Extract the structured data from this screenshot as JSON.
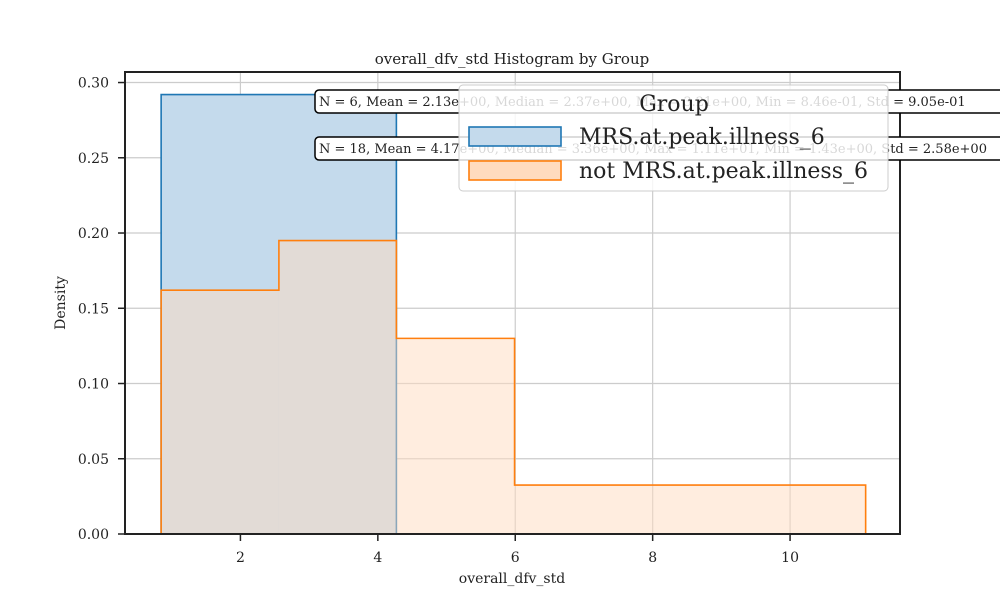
{
  "chart_data": {
    "type": "histogram",
    "title": "overall_dfv_std Histogram by Group",
    "xlabel": "overall_dfv_std",
    "ylabel": "Density",
    "xlim": [
      0.32,
      11.6
    ],
    "ylim": [
      0,
      0.307
    ],
    "x_ticks": [
      2,
      4,
      6,
      8,
      10
    ],
    "y_ticks": [
      0.0,
      0.05,
      0.1,
      0.15,
      0.2,
      0.25,
      0.3
    ],
    "x_tick_labels": [
      "2",
      "4",
      "6",
      "8",
      "10"
    ],
    "y_tick_labels": [
      "0.00",
      "0.05",
      "0.10",
      "0.15",
      "0.20",
      "0.25",
      "0.30"
    ],
    "grid": true,
    "legend": {
      "title": "Group",
      "placement": "top-right",
      "entries": [
        "MRS.at.peak.illness_6",
        "not MRS.at.peak.illness_6"
      ]
    },
    "series": [
      {
        "name": "MRS.at.peak.illness_6",
        "color": "#1f77b4",
        "fill": "#c4daec",
        "bins": [
          {
            "x0": 0.846,
            "x1": 4.27,
            "density": 0.292
          }
        ],
        "annotation": "N = 6, Mean = 2.13e+00, Median = 2.37e+00, Max = 3.21e+00, Min = 8.46e-01, Std = 9.05e-01"
      },
      {
        "name": "not MRS.at.peak.illness_6",
        "color": "#ff7f0e",
        "fill": "#ffdbbf",
        "bins": [
          {
            "x0": 0.846,
            "x1": 2.56,
            "density": 0.162
          },
          {
            "x0": 2.56,
            "x1": 4.27,
            "density": 0.195
          },
          {
            "x0": 4.27,
            "x1": 5.99,
            "density": 0.13
          },
          {
            "x0": 5.99,
            "x1": 11.1,
            "density": 0.0325
          }
        ],
        "annotation": "N = 18, Mean = 4.17e+00, Median = 3.36e+00, Max = 1.11e+01, Min = 1.43e+00, Std = 2.58e+00"
      }
    ]
  }
}
